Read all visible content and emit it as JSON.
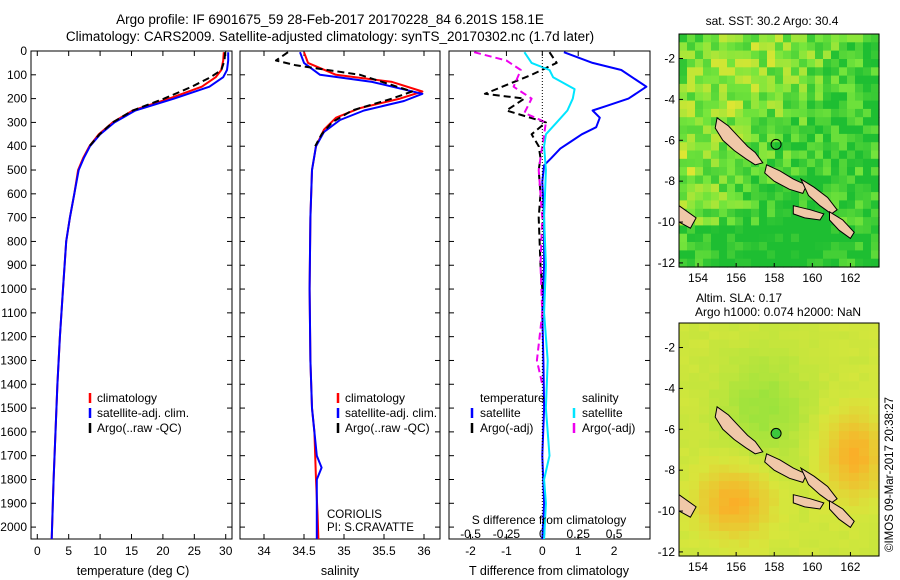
{
  "header": {
    "line1": "Argo profile: IF 6901675_59 28-Feb-2017 20170228_84 6.201S 158.1E",
    "line2": "Climatology: CARS2009. Satellite-adjusted climatology: synTS_20170302.nc (1.7d later)"
  },
  "colors": {
    "climatology": "#ff0000",
    "satellite": "#0000ff",
    "argo": "#000000",
    "sat_salinity": "#00e5ff",
    "argo_adj_salinity": "#ee00ee"
  },
  "chart_data": [
    {
      "type": "line",
      "id": "temperature",
      "xlabel": "temperature (deg C)",
      "xlim": [
        -1,
        31
      ],
      "ylim": [
        0,
        2050
      ],
      "xticks": [
        0,
        5,
        10,
        15,
        20,
        25,
        30
      ],
      "yticks": [
        0,
        100,
        200,
        300,
        400,
        500,
        600,
        700,
        800,
        900,
        1000,
        1100,
        1200,
        1300,
        1400,
        1500,
        1600,
        1700,
        1800,
        1900,
        2000
      ],
      "legend": [
        "climatology",
        "satellite-adj. clim.",
        "Argo(..raw -QC)"
      ],
      "series": [
        {
          "name": "climatology",
          "color": "#ff0000",
          "x": [
            29.7,
            29.6,
            29.3,
            28.4,
            26.2,
            21.0,
            15.2,
            12.0,
            9.8,
            8.3,
            7.3,
            6.5,
            5.9,
            5.2,
            4.6,
            4.1,
            3.6,
            3.2,
            2.9,
            2.6,
            2.3
          ],
          "y": [
            5,
            40,
            80,
            110,
            150,
            200,
            250,
            300,
            350,
            400,
            450,
            500,
            600,
            700,
            800,
            1000,
            1200,
            1400,
            1600,
            1800,
            2050
          ]
        },
        {
          "name": "satellite-adj. clim.",
          "color": "#0000ff",
          "x": [
            30.4,
            30.4,
            30.2,
            29.6,
            27.4,
            21.8,
            15.6,
            12.3,
            10.0,
            8.4,
            7.4,
            6.6,
            5.9,
            5.2,
            4.6,
            4.1,
            3.6,
            3.2,
            2.9,
            2.6,
            2.3
          ],
          "y": [
            5,
            40,
            80,
            110,
            150,
            200,
            250,
            300,
            350,
            400,
            450,
            500,
            600,
            700,
            800,
            1000,
            1200,
            1400,
            1600,
            1800,
            2050
          ]
        },
        {
          "name": "Argo(..raw -QC)",
          "color": "#000000",
          "dash": true,
          "x": [
            29.9,
            29.8,
            29.3,
            27.6,
            24.6,
            20.2,
            15.2,
            12.0,
            9.9,
            8.3
          ],
          "y": [
            5,
            40,
            80,
            110,
            150,
            200,
            250,
            300,
            350,
            400
          ]
        }
      ]
    },
    {
      "type": "line",
      "id": "salinity",
      "xlabel": "salinity",
      "xlim": [
        33.7,
        36.2
      ],
      "ylim": [
        0,
        2050
      ],
      "xticks": [
        34,
        34.5,
        35,
        35.5,
        36
      ],
      "legend": [
        "climatology",
        "satellite-adj. clim.",
        "Argo(..raw -QC)"
      ],
      "annotation": [
        "CORIOLIS",
        "PI: S.CRAVATTE"
      ],
      "series": [
        {
          "name": "climatology",
          "color": "#ff0000",
          "x": [
            34.5,
            34.55,
            34.9,
            35.6,
            35.98,
            35.7,
            35.2,
            34.9,
            34.75,
            34.65,
            34.6,
            34.58,
            34.57,
            34.58,
            34.6,
            34.63,
            34.65,
            34.67,
            34.68
          ],
          "y": [
            5,
            50,
            100,
            130,
            170,
            200,
            240,
            280,
            330,
            400,
            500,
            700,
            1000,
            1300,
            1500,
            1600,
            1800,
            1950,
            2050
          ]
        },
        {
          "name": "satellite-adj. clim.",
          "color": "#0000ff",
          "x": [
            34.45,
            34.5,
            34.7,
            35.35,
            35.98,
            35.75,
            35.25,
            34.95,
            34.75,
            34.65,
            34.6,
            34.58,
            34.57,
            34.58,
            34.6,
            34.63,
            34.66,
            34.72,
            34.66,
            34.66
          ],
          "y": [
            5,
            50,
            100,
            130,
            180,
            210,
            250,
            290,
            340,
            400,
            500,
            700,
            1000,
            1300,
            1500,
            1600,
            1700,
            1750,
            1800,
            2050
          ]
        },
        {
          "name": "Argo(..raw -QC)",
          "color": "#000000",
          "dash": true,
          "x": [
            34.3,
            34.15,
            34.4,
            35.2,
            35.85,
            35.6,
            35.1,
            34.85,
            34.72,
            34.64
          ],
          "y": [
            5,
            40,
            60,
            100,
            170,
            200,
            250,
            300,
            350,
            400
          ]
        }
      ]
    },
    {
      "type": "line",
      "id": "differences",
      "xlabel": "T difference from climatology",
      "x2label": "S difference from climatology",
      "xlim": [
        -2.6,
        3.0
      ],
      "ylim": [
        0,
        2050
      ],
      "xticks": [
        -2,
        -1,
        0,
        1,
        2
      ],
      "x2ticks": [
        -0.5,
        -0.25,
        0,
        0.25,
        0.5
      ],
      "legend_titles": [
        "temperature",
        "salinity"
      ],
      "legend": [
        "satellite",
        "Argo(-adj)",
        "satellite",
        "Argo(-adj)"
      ],
      "series": [
        {
          "name": "temperature satellite",
          "color": "#0000ff",
          "x": [
            0.6,
            1.4,
            2.2,
            2.9,
            2.4,
            1.8,
            1.4,
            1.6,
            1.5,
            1.1,
            0.8,
            0.5,
            0.25,
            0.05,
            0.0,
            0.05,
            0.05,
            0.0,
            0.03,
            0.05,
            0.0,
            0.05,
            0.0
          ],
          "y": [
            5,
            50,
            80,
            150,
            200,
            230,
            250,
            280,
            320,
            350,
            380,
            410,
            450,
            480,
            550,
            700,
            900,
            1100,
            1300,
            1500,
            1700,
            1900,
            2050
          ]
        },
        {
          "name": "temperature Argo(-adj)",
          "color": "#000000",
          "dash": true,
          "x": [
            0.2,
            0.4,
            -0.3,
            -1.6,
            -0.5,
            -1.0,
            0.1,
            -0.3,
            -0.1,
            -0.05,
            -0.1,
            -0.05,
            -0.1,
            -0.05,
            0.0
          ],
          "y": [
            5,
            50,
            100,
            180,
            200,
            250,
            300,
            350,
            400,
            450,
            500,
            600,
            700,
            900,
            1000
          ]
        },
        {
          "name": "salinity satellite",
          "color": "#00e5ff",
          "x": [
            -0.5,
            -0.3,
            0.2,
            0.3,
            0.9,
            0.85,
            0.7,
            0.4,
            0.1,
            0.05,
            0.1,
            0.05,
            0.1,
            0.05,
            0.15,
            0.1,
            0.2,
            0.05,
            0.1,
            0.05
          ],
          "y": [
            5,
            50,
            80,
            110,
            160,
            200,
            250,
            300,
            350,
            400,
            500,
            700,
            900,
            1100,
            1300,
            1500,
            1700,
            1800,
            1900,
            2050
          ]
        },
        {
          "name": "salinity Argo(-adj)",
          "color": "#ee00ee",
          "dash": true,
          "x": [
            -1.9,
            -1.0,
            -0.6,
            -0.8,
            -0.3,
            -0.5,
            0.1,
            0.05,
            0.0,
            -0.1,
            0.0,
            -0.05,
            0.0,
            -0.15,
            0.0
          ],
          "y": [
            5,
            40,
            80,
            150,
            200,
            260,
            300,
            350,
            400,
            500,
            700,
            900,
            1100,
            1300,
            1400
          ]
        }
      ]
    },
    {
      "type": "heatmap",
      "id": "sst-map",
      "title": "sat. SST: 30.2 Argo: 30.4",
      "xlim": [
        153,
        163.5
      ],
      "ylim": [
        -12.2,
        -0.8
      ],
      "xticks": [
        154,
        156,
        158,
        160,
        162
      ],
      "yticks": [
        -2,
        -4,
        -6,
        -8,
        -10,
        -12
      ],
      "marker": {
        "lon": 158.1,
        "lat": -6.2
      }
    },
    {
      "type": "heatmap",
      "id": "sla-map",
      "title": [
        "Altim. SLA: 0.17",
        "Argo h1000: 0.074 h2000: NaN"
      ],
      "xlim": [
        153,
        163.5
      ],
      "ylim": [
        -12.2,
        -0.8
      ],
      "xticks": [
        154,
        156,
        158,
        160,
        162
      ],
      "yticks": [
        -2,
        -4,
        -6,
        -8,
        -10,
        -12
      ],
      "marker": {
        "lon": 158.1,
        "lat": -6.2
      }
    }
  ],
  "footer": {
    "stamp": "©IMOS 09-Mar-2017 20:38:27"
  }
}
